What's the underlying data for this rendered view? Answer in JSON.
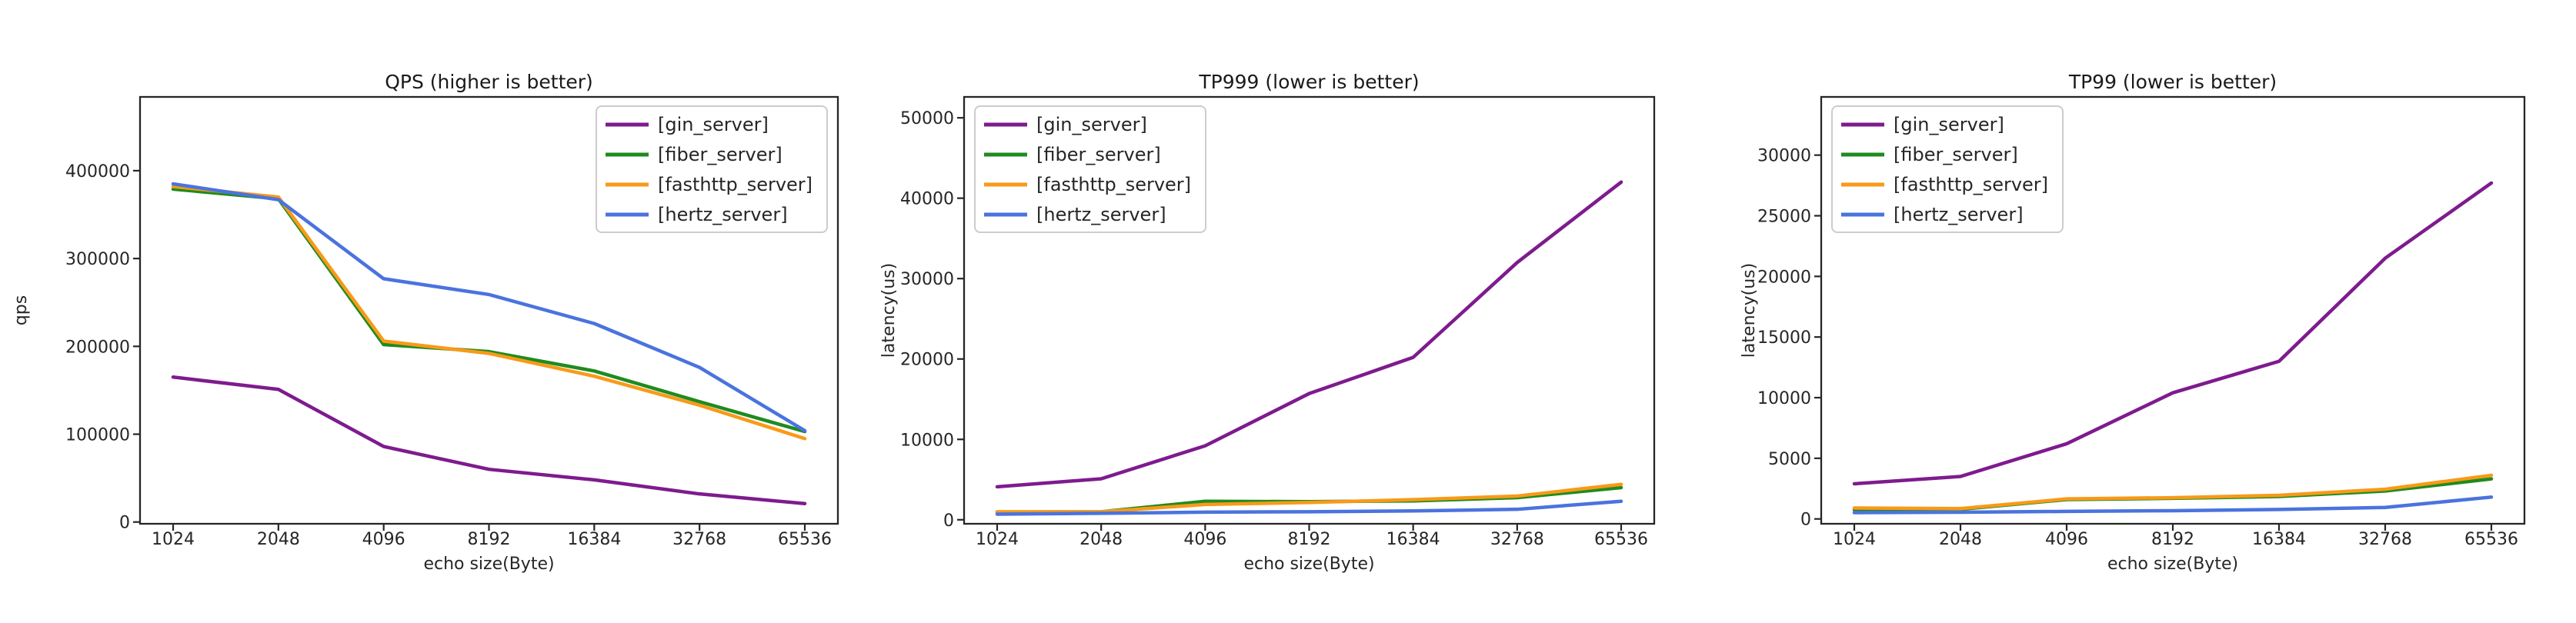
{
  "figure": {
    "background": "#ffffff",
    "description": "Benchmark comparison of Go HTTP servers"
  },
  "chart_data": [
    {
      "type": "line",
      "title": "QPS (higher is better)",
      "xlabel": "echo size(Byte)",
      "ylabel": "qps",
      "categories": [
        "1024",
        "2048",
        "4096",
        "8192",
        "16384",
        "32768",
        "65536"
      ],
      "yticks": [
        0,
        100000,
        200000,
        300000,
        400000
      ],
      "ytick_labels": [
        "0",
        "100000",
        "200000",
        "300000",
        "400000"
      ],
      "ylim": [
        -2000,
        484000
      ],
      "grid": false,
      "legend_position": "top-right",
      "series": [
        {
          "name": "[gin_server]",
          "color": "#7e1b8e",
          "values": [
            165000,
            151000,
            86000,
            60000,
            48000,
            32000,
            21000
          ]
        },
        {
          "name": "[fiber_server]",
          "color": "#1f8b1f",
          "values": [
            379000,
            368000,
            202000,
            194000,
            172000,
            137000,
            103000
          ]
        },
        {
          "name": "[fasthttp_server]",
          "color": "#f89a18",
          "values": [
            382000,
            370000,
            206000,
            192000,
            166000,
            133000,
            95000
          ]
        },
        {
          "name": "[hertz_server]",
          "color": "#4a73de",
          "values": [
            385000,
            367000,
            277000,
            259000,
            226000,
            176000,
            104000
          ]
        }
      ]
    },
    {
      "type": "line",
      "title": "TP999 (lower is better)",
      "xlabel": "echo size(Byte)",
      "ylabel": "latency(us)",
      "categories": [
        "1024",
        "2048",
        "4096",
        "8192",
        "16384",
        "32768",
        "65536"
      ],
      "yticks": [
        0,
        10000,
        20000,
        30000,
        40000,
        50000
      ],
      "ytick_labels": [
        "0",
        "10000",
        "20000",
        "30000",
        "40000",
        "50000"
      ],
      "ylim": [
        -500,
        52600
      ],
      "grid": false,
      "legend_position": "top-left",
      "series": [
        {
          "name": "[gin_server]",
          "color": "#7e1b8e",
          "values": [
            4100,
            5100,
            9200,
            15700,
            20200,
            32000,
            42000
          ]
        },
        {
          "name": "[fiber_server]",
          "color": "#1f8b1f",
          "values": [
            950,
            1000,
            2300,
            2250,
            2350,
            2750,
            4000
          ]
        },
        {
          "name": "[fasthttp_server]",
          "color": "#f89a18",
          "values": [
            1000,
            1000,
            1900,
            2150,
            2500,
            2950,
            4400
          ]
        },
        {
          "name": "[hertz_server]",
          "color": "#4a73de",
          "values": [
            700,
            800,
            950,
            1000,
            1100,
            1300,
            2300
          ]
        }
      ]
    },
    {
      "type": "line",
      "title": "TP99 (lower is better)",
      "xlabel": "echo size(Byte)",
      "ylabel": "latency(us)",
      "categories": [
        "1024",
        "2048",
        "4096",
        "8192",
        "16384",
        "32768",
        "65536"
      ],
      "yticks": [
        0,
        5000,
        10000,
        15000,
        20000,
        25000,
        30000
      ],
      "ytick_labels": [
        "0",
        "5000",
        "10000",
        "15000",
        "20000",
        "25000",
        "30000"
      ],
      "ylim": [
        -400,
        34800
      ],
      "grid": false,
      "legend_position": "top-left",
      "series": [
        {
          "name": "[gin_server]",
          "color": "#7e1b8e",
          "values": [
            2900,
            3500,
            6200,
            10400,
            13000,
            21500,
            27700
          ]
        },
        {
          "name": "[fiber_server]",
          "color": "#1f8b1f",
          "values": [
            750,
            800,
            1600,
            1700,
            1850,
            2300,
            3300
          ]
        },
        {
          "name": "[fasthttp_server]",
          "color": "#f89a18",
          "values": [
            900,
            850,
            1650,
            1750,
            1950,
            2450,
            3600
          ]
        },
        {
          "name": "[hertz_server]",
          "color": "#4a73de",
          "values": [
            520,
            550,
            620,
            680,
            780,
            950,
            1800
          ]
        }
      ]
    }
  ]
}
